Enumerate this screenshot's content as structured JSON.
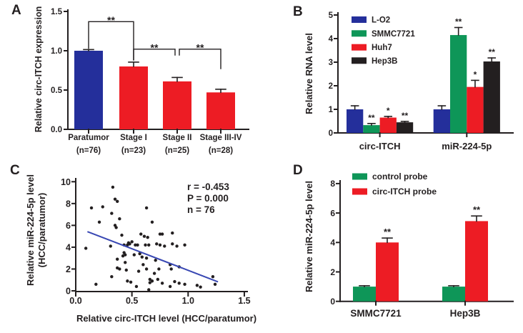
{
  "figure": {
    "background": "#ffffff"
  },
  "colors": {
    "navy": "#242f9b",
    "red": "#ed1c24",
    "green": "#0e9658",
    "black": "#231f20",
    "regression_line": "#3847b3",
    "text": "#231f20",
    "axis": "#231f20"
  },
  "chart_data": [
    {
      "panel": "A",
      "type": "bar",
      "ylabel": "Relative circ-ITCH expression",
      "ylim": [
        0,
        1.5
      ],
      "yticks": [
        0.0,
        0.5,
        1.0,
        1.5
      ],
      "ytick_labels": [
        "0.0",
        "0.5",
        "1.0",
        "1.5"
      ],
      "categories": [
        "Paratumor",
        "Stage I",
        "Stage II",
        "Stage III-IV"
      ],
      "sublabels": [
        "(n=76)",
        "(n=23)",
        "(n=25)",
        "(n=28)"
      ],
      "values": [
        1.0,
        0.8,
        0.61,
        0.47
      ],
      "errors": [
        0.015,
        0.055,
        0.05,
        0.04
      ],
      "bar_colors": [
        "#242f9b",
        "#ed1c24",
        "#ed1c24",
        "#ed1c24"
      ],
      "significance_brackets": [
        {
          "between": [
            0,
            1
          ],
          "y": 1.37,
          "label": "**"
        },
        {
          "between": [
            1,
            2
          ],
          "y": 1.02,
          "label": "**"
        },
        {
          "between": [
            2,
            3
          ],
          "y": 1.02,
          "label": "**"
        }
      ]
    },
    {
      "panel": "B",
      "type": "bar",
      "ylabel": "Relative RNA level",
      "ylim": [
        0,
        5
      ],
      "yticks": [
        0,
        1,
        2,
        3,
        4,
        5
      ],
      "ytick_labels": [
        "0",
        "1",
        "2",
        "3",
        "4",
        "5"
      ],
      "categories": [
        "circ-ITCH",
        "miR-224-5p"
      ],
      "legend_position": "top-left",
      "series": [
        {
          "name": "L-O2",
          "color": "#242f9b",
          "values": [
            1.0,
            1.0
          ],
          "errors": [
            0.15,
            0.15
          ],
          "sig": [
            "",
            ""
          ]
        },
        {
          "name": "SMMC7721",
          "color": "#0e9658",
          "values": [
            0.33,
            4.15
          ],
          "errors": [
            0.07,
            0.32
          ],
          "sig": [
            "**",
            "**"
          ]
        },
        {
          "name": "Huh7",
          "color": "#ed1c24",
          "values": [
            0.65,
            1.95
          ],
          "errors": [
            0.05,
            0.28
          ],
          "sig": [
            "*",
            "*"
          ]
        },
        {
          "name": "Hep3B",
          "color": "#231f20",
          "values": [
            0.45,
            3.03
          ],
          "errors": [
            0.04,
            0.15
          ],
          "sig": [
            "**",
            "**"
          ]
        }
      ]
    },
    {
      "panel": "C",
      "type": "scatter",
      "xlabel": "Relative circ-ITCH level (HCC/paratumor)",
      "ylabel_lines": [
        "Relative miR-224-5p level",
        "(HCC/paratumor)"
      ],
      "xlim": [
        0,
        1.5
      ],
      "ylim": [
        0,
        10
      ],
      "xticks": [
        0.0,
        0.5,
        1.0,
        1.5
      ],
      "xtick_labels": [
        "0.0",
        "0.5",
        "1.0",
        "1.5"
      ],
      "yticks": [
        0,
        2,
        4,
        6,
        8,
        10
      ],
      "ytick_labels": [
        "0",
        "2",
        "4",
        "6",
        "8",
        "10"
      ],
      "annotation_lines": [
        "r = -0.453",
        "P = 0.000",
        "n = 76"
      ],
      "regression_line": {
        "x1": 0.11,
        "y1": 5.4,
        "x2": 1.26,
        "y2": 0.85
      },
      "point_color": "#231f20",
      "points": [
        [
          0.33,
          9.5
        ],
        [
          0.35,
          8.4
        ],
        [
          0.37,
          8.2
        ],
        [
          0.14,
          7.6
        ],
        [
          0.24,
          7.7
        ],
        [
          0.63,
          7.6
        ],
        [
          0.32,
          7.1
        ],
        [
          0.39,
          6.6
        ],
        [
          0.21,
          6.3
        ],
        [
          0.35,
          6.0
        ],
        [
          0.36,
          5.8
        ],
        [
          0.68,
          6.3
        ],
        [
          0.41,
          5.1
        ],
        [
          0.58,
          5.2
        ],
        [
          0.61,
          5.0
        ],
        [
          0.64,
          4.9
        ],
        [
          0.75,
          5.2
        ],
        [
          0.77,
          5.2
        ],
        [
          0.86,
          5.3
        ],
        [
          0.43,
          4.2
        ],
        [
          0.46,
          4.2
        ],
        [
          0.48,
          4.3
        ],
        [
          0.53,
          4.2
        ],
        [
          0.55,
          4.2
        ],
        [
          0.62,
          4.2
        ],
        [
          0.65,
          4.2
        ],
        [
          0.75,
          4.2
        ],
        [
          0.79,
          4.1
        ],
        [
          0.86,
          4.3
        ],
        [
          0.97,
          4.2
        ],
        [
          0.31,
          4.1
        ],
        [
          0.09,
          3.9
        ],
        [
          0.43,
          3.5
        ],
        [
          0.44,
          3.3
        ],
        [
          0.42,
          3.2
        ],
        [
          0.37,
          2.9
        ],
        [
          0.59,
          3.1
        ],
        [
          0.63,
          3.0
        ],
        [
          0.71,
          2.8
        ],
        [
          0.37,
          2.1
        ],
        [
          0.39,
          2.0
        ],
        [
          0.45,
          1.9
        ],
        [
          0.56,
          1.8
        ],
        [
          0.63,
          2.0
        ],
        [
          0.74,
          2.0
        ],
        [
          0.84,
          2.4
        ],
        [
          0.85,
          2.0
        ],
        [
          0.92,
          2.2
        ],
        [
          0.32,
          1.3
        ],
        [
          0.46,
          0.9
        ],
        [
          0.49,
          0.8
        ],
        [
          0.54,
          0.4
        ],
        [
          0.66,
          1.05
        ],
        [
          0.68,
          0.9
        ],
        [
          0.66,
          0.75
        ],
        [
          0.73,
          1.05
        ],
        [
          0.77,
          0.7
        ],
        [
          0.84,
          0.4
        ],
        [
          0.88,
          0.85
        ],
        [
          0.92,
          0.7
        ],
        [
          0.97,
          0.6
        ],
        [
          1.08,
          0.5
        ],
        [
          1.11,
          0.35
        ],
        [
          1.22,
          1.3
        ],
        [
          1.24,
          0.6
        ],
        [
          0.18,
          0.6
        ],
        [
          0.65,
          0.1
        ],
        [
          0.9,
          4.1
        ],
        [
          0.72,
          4.3
        ],
        [
          0.5,
          4.5
        ],
        [
          0.47,
          4.4
        ],
        [
          0.57,
          3.4
        ],
        [
          0.52,
          3.3
        ],
        [
          0.44,
          2.6
        ],
        [
          0.6,
          2.4
        ],
        [
          0.7,
          1.6
        ]
      ]
    },
    {
      "panel": "D",
      "type": "bar",
      "ylabel": "Relative miR-224-5p level",
      "ylim": [
        0,
        8
      ],
      "yticks": [
        0,
        2,
        4,
        6,
        8
      ],
      "ytick_labels": [
        "0",
        "2",
        "4",
        "6",
        "8"
      ],
      "categories": [
        "SMMC7721",
        "Hep3B"
      ],
      "legend_position": "top-left",
      "series": [
        {
          "name": "control probe",
          "color": "#0e9658",
          "values": [
            1.0,
            1.0
          ],
          "errors": [
            0.06,
            0.06
          ],
          "sig": [
            "",
            ""
          ]
        },
        {
          "name": "circ-ITCH  probe",
          "color": "#ed1c24",
          "values": [
            4.0,
            5.45
          ],
          "errors": [
            0.3,
            0.35
          ],
          "sig": [
            "**",
            "**"
          ]
        }
      ]
    }
  ]
}
